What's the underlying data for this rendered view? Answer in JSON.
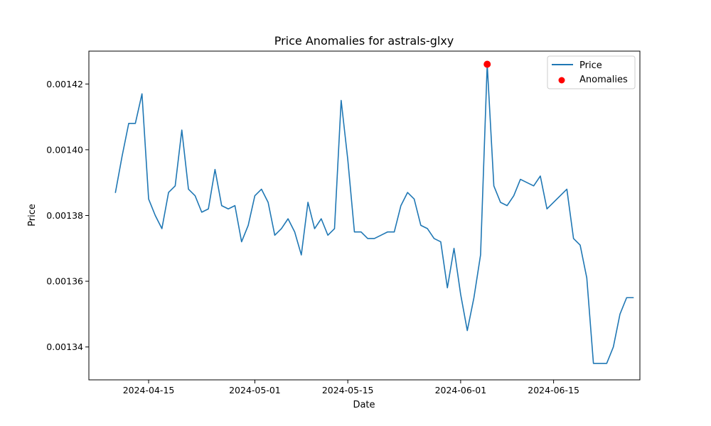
{
  "chart_data": {
    "type": "line",
    "title": "Price Anomalies for astrals-glxy",
    "xlabel": "Date",
    "ylabel": "Price",
    "xlim": [
      "2024-04-06",
      "2024-06-28"
    ],
    "ylim": [
      0.00133,
      0.00143
    ],
    "x_ticks": [
      "2024-04-15",
      "2024-05-01",
      "2024-05-15",
      "2024-06-01",
      "2024-06-15"
    ],
    "y_ticks": [
      "0.00134",
      "0.00136",
      "0.00138",
      "0.00140",
      "0.00142"
    ],
    "legend": {
      "position": "top-right",
      "entries": [
        "Price",
        "Anomalies"
      ]
    },
    "grid": false,
    "colors": {
      "line": "#1f77b4",
      "anomaly": "#ff0000",
      "axes": "#000000"
    },
    "series": [
      {
        "name": "Price",
        "kind": "line",
        "x": [
          "2024-04-10",
          "2024-04-11",
          "2024-04-12",
          "2024-04-13",
          "2024-04-14",
          "2024-04-15",
          "2024-04-16",
          "2024-04-17",
          "2024-04-18",
          "2024-04-19",
          "2024-04-20",
          "2024-04-21",
          "2024-04-22",
          "2024-04-23",
          "2024-04-24",
          "2024-04-25",
          "2024-04-26",
          "2024-04-27",
          "2024-04-28",
          "2024-04-29",
          "2024-04-30",
          "2024-05-01",
          "2024-05-02",
          "2024-05-03",
          "2024-05-04",
          "2024-05-05",
          "2024-05-06",
          "2024-05-07",
          "2024-05-08",
          "2024-05-09",
          "2024-05-10",
          "2024-05-11",
          "2024-05-12",
          "2024-05-13",
          "2024-05-14",
          "2024-05-15",
          "2024-05-16",
          "2024-05-17",
          "2024-05-18",
          "2024-05-19",
          "2024-05-20",
          "2024-05-21",
          "2024-05-22",
          "2024-05-23",
          "2024-05-24",
          "2024-05-25",
          "2024-05-26",
          "2024-05-27",
          "2024-05-28",
          "2024-05-29",
          "2024-05-30",
          "2024-05-31",
          "2024-06-01",
          "2024-06-02",
          "2024-06-03",
          "2024-06-04",
          "2024-06-05",
          "2024-06-06",
          "2024-06-07",
          "2024-06-08",
          "2024-06-09",
          "2024-06-10",
          "2024-06-11",
          "2024-06-12",
          "2024-06-13",
          "2024-06-14",
          "2024-06-15",
          "2024-06-16",
          "2024-06-17",
          "2024-06-18",
          "2024-06-19",
          "2024-06-20",
          "2024-06-21",
          "2024-06-22",
          "2024-06-23",
          "2024-06-24",
          "2024-06-25",
          "2024-06-26",
          "2024-06-27"
        ],
        "y": [
          0.001387,
          0.001398,
          0.001408,
          0.001408,
          0.001417,
          0.001385,
          0.00138,
          0.001376,
          0.001387,
          0.001389,
          0.001406,
          0.001388,
          0.001386,
          0.001381,
          0.001382,
          0.001394,
          0.001383,
          0.001382,
          0.001383,
          0.001372,
          0.001377,
          0.001386,
          0.001388,
          0.001384,
          0.001374,
          0.001376,
          0.001379,
          0.001375,
          0.001368,
          0.001384,
          0.001376,
          0.001379,
          0.001374,
          0.001376,
          0.001415,
          0.001397,
          0.001375,
          0.001375,
          0.001373,
          0.001373,
          0.001374,
          0.001375,
          0.001375,
          0.001383,
          0.001387,
          0.001385,
          0.001377,
          0.001376,
          0.001373,
          0.001372,
          0.001358,
          0.00137,
          0.001356,
          0.001345,
          0.001355,
          0.001368,
          0.001426,
          0.001389,
          0.001384,
          0.001383,
          0.001386,
          0.001391,
          0.00139,
          0.001389,
          0.001392,
          0.001382,
          0.001384,
          0.001386,
          0.001388,
          0.001373,
          0.001371,
          0.001361,
          0.001335,
          0.001335,
          0.001335,
          0.00134,
          0.00135,
          0.001355,
          0.001355
        ]
      },
      {
        "name": "Anomalies",
        "kind": "scatter",
        "x": [
          "2024-06-05"
        ],
        "y": [
          0.001426
        ]
      }
    ]
  }
}
